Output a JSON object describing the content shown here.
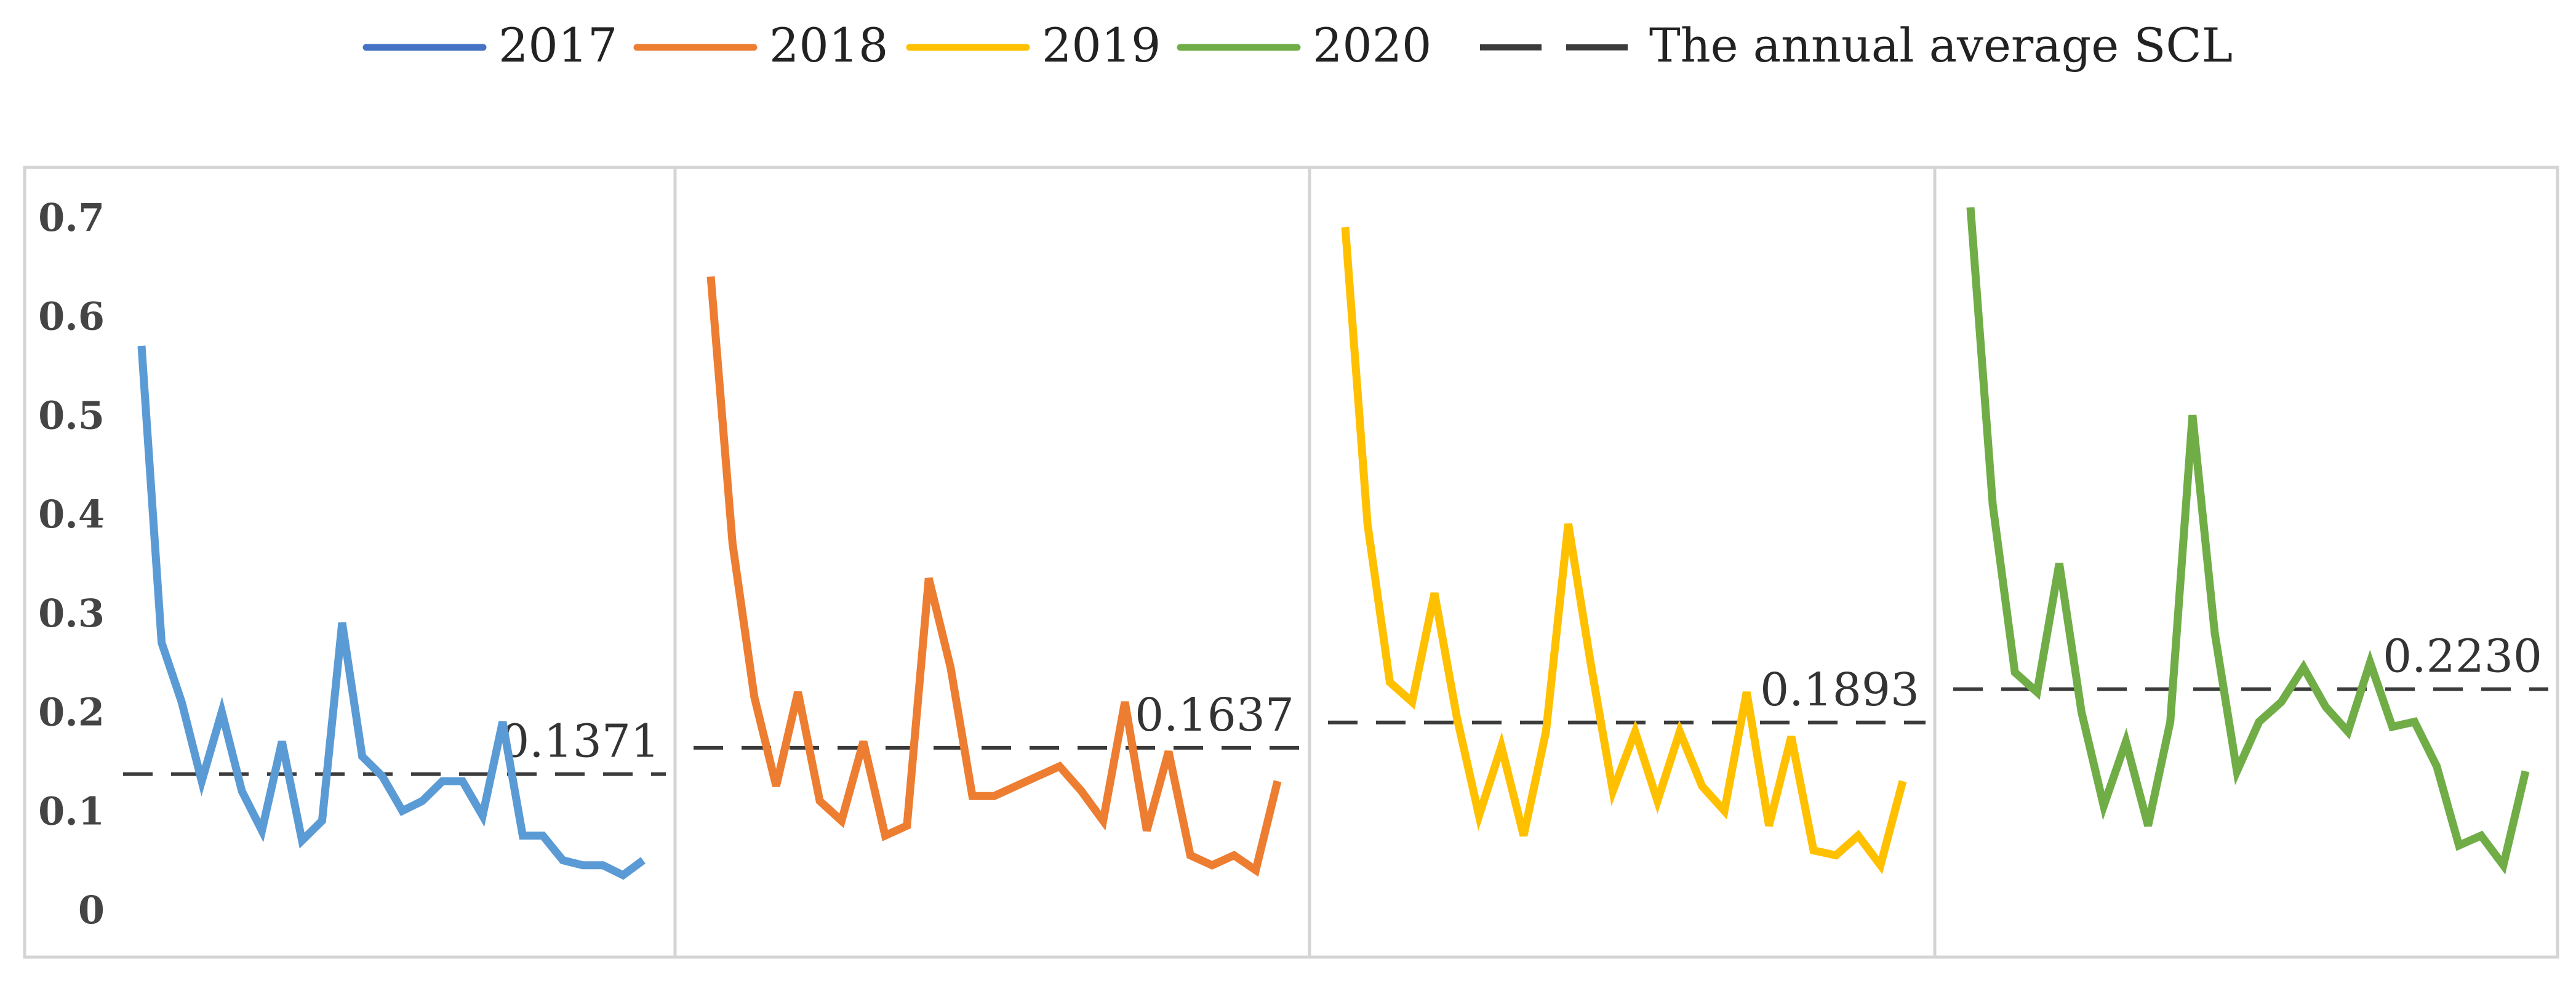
{
  "chart_data": {
    "type": "line",
    "title": "",
    "ylim": [
      0,
      0.7
    ],
    "yticks": [
      "0.7",
      "0.6",
      "0.5",
      "0.4",
      "0.3",
      "0.2",
      "0.1",
      "0"
    ],
    "grid": false,
    "legend_position": "top",
    "legend": {
      "average_label": "The annual average SCL"
    },
    "series": [
      {
        "name": "2017",
        "color": "#5b9bd5",
        "legend_color": "#4472c4",
        "average": 0.1371,
        "average_label": "0.1371",
        "values": [
          0.57,
          0.27,
          0.21,
          0.13,
          0.2,
          0.12,
          0.08,
          0.17,
          0.07,
          0.09,
          0.29,
          0.155,
          0.135,
          0.1,
          0.11,
          0.13,
          0.13,
          0.095,
          0.19,
          0.075,
          0.075,
          0.05,
          0.045,
          0.045,
          0.035,
          0.05
        ]
      },
      {
        "name": "2018",
        "color": "#ed7d31",
        "legend_color": "#ed7d31",
        "average": 0.1637,
        "average_label": "0.1637",
        "values": [
          0.64,
          0.37,
          0.215,
          0.125,
          0.22,
          0.11,
          0.09,
          0.17,
          0.075,
          0.085,
          0.335,
          0.245,
          0.115,
          0.115,
          0.125,
          0.135,
          0.145,
          0.12,
          0.09,
          0.21,
          0.08,
          0.16,
          0.055,
          0.045,
          0.055,
          0.04,
          0.13
        ]
      },
      {
        "name": "2019",
        "color": "#ffc000",
        "legend_color": "#ffc000",
        "average": 0.1893,
        "average_label": "0.1893",
        "values": [
          0.69,
          0.39,
          0.23,
          0.21,
          0.32,
          0.195,
          0.095,
          0.165,
          0.075,
          0.18,
          0.39,
          0.25,
          0.12,
          0.18,
          0.11,
          0.18,
          0.125,
          0.1,
          0.22,
          0.085,
          0.175,
          0.06,
          0.055,
          0.075,
          0.045,
          0.13
        ]
      },
      {
        "name": "2020",
        "color": "#70ad47",
        "legend_color": "#70ad47",
        "average": 0.223,
        "average_label": "0.2230",
        "values": [
          0.71,
          0.41,
          0.24,
          0.22,
          0.35,
          0.2,
          0.105,
          0.17,
          0.085,
          0.19,
          0.5,
          0.28,
          0.14,
          0.19,
          0.21,
          0.245,
          0.205,
          0.18,
          0.25,
          0.185,
          0.19,
          0.145,
          0.065,
          0.075,
          0.045,
          0.14
        ]
      }
    ]
  }
}
